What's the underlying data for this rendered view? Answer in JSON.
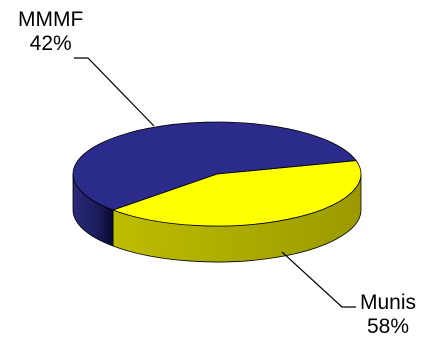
{
  "chart_data": {
    "type": "pie",
    "style": "3d",
    "title": "",
    "slices": [
      {
        "name": "MMMF",
        "value": 42,
        "label_pct": "42%",
        "color": "#FFFF00"
      },
      {
        "name": "Munis",
        "value": 58,
        "label_pct": "58%",
        "color": "#2B2B8C"
      }
    ],
    "legend": "none"
  }
}
